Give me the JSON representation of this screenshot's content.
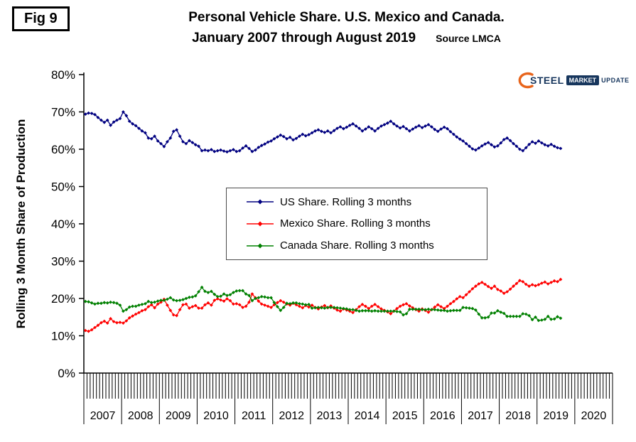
{
  "fig_label": "Fig 9",
  "title": {
    "line1": "Personal Vehicle Share. U.S. Mexico and Canada.",
    "line2": "January 2007 through August 2019",
    "source": "Source LMCA"
  },
  "y_axis_label": "Rolling 3 Month Share of Production",
  "logo": {
    "steel": "STEEL",
    "market": "MARKET",
    "update": "UPDATE"
  },
  "chart_data": {
    "type": "line",
    "title": "Personal Vehicle Share. U.S. Mexico and Canada. January 2007 through August 2019",
    "source": "Source LMCA",
    "ylabel": "Rolling 3 Month Share of Production",
    "ylim": [
      0,
      80
    ],
    "y_ticks": [
      0,
      10,
      20,
      30,
      40,
      50,
      60,
      70,
      80
    ],
    "y_tick_suffix": "%",
    "x_start": "2007-01",
    "x_end": "2019-08",
    "x_frequency": "monthly",
    "x_tick_labels": [
      "2007",
      "2008",
      "2009",
      "2010",
      "2011",
      "2012",
      "2013",
      "2014",
      "2015",
      "2016",
      "2017",
      "2018",
      "2019",
      "2020"
    ],
    "legend_position": "inside-center",
    "grid": false,
    "series": [
      {
        "id": "us",
        "name": "US Share. Rolling 3 months",
        "color": "#000080",
        "values": [
          69.4,
          69.7,
          69.6,
          69.3,
          68.5,
          67.8,
          67.2,
          67.8,
          66.4,
          67.3,
          67.8,
          68.2,
          70.0,
          69.0,
          67.5,
          66.8,
          66.3,
          65.6,
          64.9,
          64.4,
          63.0,
          62.8,
          63.5,
          62.2,
          61.5,
          60.7,
          62.0,
          63.0,
          64.8,
          65.2,
          63.5,
          62.0,
          61.5,
          62.3,
          61.8,
          61.2,
          60.8,
          59.6,
          59.8,
          59.6,
          59.9,
          59.4,
          59.6,
          59.8,
          59.5,
          59.3,
          59.6,
          59.9,
          59.4,
          59.6,
          60.3,
          60.9,
          60.2,
          59.4,
          59.8,
          60.5,
          61.0,
          61.4,
          61.9,
          62.2,
          62.8,
          63.3,
          63.8,
          63.4,
          62.8,
          63.2,
          62.5,
          62.9,
          63.5,
          64.0,
          63.6,
          63.9,
          64.4,
          64.9,
          65.2,
          64.8,
          64.5,
          64.9,
          64.4,
          65.0,
          65.6,
          66.0,
          65.5,
          65.9,
          66.4,
          66.8,
          66.2,
          65.6,
          64.9,
          65.4,
          66.0,
          65.5,
          64.9,
          65.6,
          66.2,
          66.6,
          67.0,
          67.5,
          66.8,
          66.2,
          65.7,
          66.1,
          65.5,
          64.9,
          65.4,
          65.9,
          66.3,
          65.8,
          66.2,
          66.6,
          66.0,
          65.3,
          64.8,
          65.4,
          65.9,
          65.5,
          64.7,
          64.0,
          63.3,
          62.7,
          62.2,
          61.5,
          60.8,
          60.1,
          59.8,
          60.3,
          60.9,
          61.4,
          61.8,
          61.2,
          60.6,
          60.9,
          61.7,
          62.6,
          63.0,
          62.3,
          61.5,
          60.8,
          60.0,
          59.6,
          60.4,
          61.3,
          62.0,
          61.6,
          62.2,
          61.7,
          61.2,
          60.9,
          61.3,
          60.8,
          60.4,
          60.2
        ]
      },
      {
        "id": "mexico",
        "name": "Mexico Share. Rolling 3 months",
        "color": "#FF0000",
        "values": [
          11.4,
          11.2,
          11.6,
          12.2,
          12.8,
          13.5,
          13.9,
          13.4,
          14.6,
          13.8,
          13.5,
          13.6,
          13.4,
          14.0,
          14.8,
          15.3,
          15.8,
          16.2,
          16.7,
          17.0,
          17.8,
          18.3,
          17.5,
          18.5,
          19.0,
          19.8,
          18.2,
          16.8,
          15.6,
          15.4,
          17.0,
          18.3,
          18.5,
          17.4,
          17.8,
          18.1,
          17.4,
          17.4,
          18.3,
          18.8,
          18.2,
          19.5,
          19.9,
          19.6,
          19.3,
          19.9,
          19.4,
          18.5,
          18.6,
          18.3,
          17.6,
          17.9,
          19.0,
          21.2,
          20.2,
          19.3,
          18.5,
          18.2,
          17.9,
          17.6,
          18.3,
          18.9,
          19.4,
          19.0,
          18.5,
          18.2,
          18.7,
          18.3,
          17.9,
          17.5,
          18.1,
          17.7,
          18.2,
          17.6,
          17.2,
          17.7,
          18.1,
          17.5,
          18.0,
          17.4,
          16.9,
          16.6,
          17.2,
          16.9,
          16.6,
          16.2,
          17.0,
          17.8,
          18.4,
          17.9,
          17.3,
          17.9,
          18.4,
          17.8,
          17.2,
          16.8,
          16.4,
          15.9,
          16.6,
          17.3,
          17.9,
          18.3,
          18.6,
          18.0,
          17.5,
          17.0,
          16.6,
          17.2,
          16.8,
          16.3,
          17.0,
          17.7,
          18.3,
          17.8,
          17.3,
          17.9,
          18.6,
          19.2,
          19.9,
          20.5,
          20.2,
          21.0,
          21.8,
          22.6,
          23.3,
          23.9,
          24.3,
          23.8,
          23.2,
          22.7,
          23.3,
          22.4,
          22.0,
          21.4,
          21.8,
          22.5,
          23.3,
          24.0,
          24.8,
          24.5,
          23.8,
          23.3,
          23.7,
          23.4,
          23.7,
          24.1,
          24.4,
          23.9,
          24.3,
          24.7,
          24.5,
          25.1
        ]
      },
      {
        "id": "canada",
        "name": "Canada Share. Rolling 3 months",
        "color": "#008000",
        "values": [
          19.2,
          19.1,
          18.8,
          18.5,
          18.7,
          18.7,
          18.9,
          18.8,
          19.0,
          18.9,
          18.7,
          18.2,
          16.6,
          17.0,
          17.7,
          17.9,
          17.9,
          18.2,
          18.4,
          18.6,
          19.2,
          18.9,
          19.0,
          19.3,
          19.5,
          19.5,
          19.8,
          20.2,
          19.6,
          19.4,
          19.5,
          19.7,
          20.0,
          20.3,
          20.4,
          20.7,
          21.8,
          23.0,
          21.9,
          21.6,
          21.9,
          21.1,
          20.5,
          20.6,
          21.2,
          20.8,
          21.0,
          21.6,
          22.0,
          22.1,
          22.1,
          21.2,
          20.8,
          19.4,
          20.0,
          20.2,
          20.5,
          20.4,
          20.2,
          20.2,
          18.9,
          17.8,
          16.8,
          17.6,
          18.7,
          18.6,
          18.8,
          18.8,
          18.6,
          18.5,
          18.3,
          18.4,
          17.4,
          17.5,
          17.6,
          17.5,
          17.4,
          17.6,
          17.6,
          17.6,
          17.5,
          17.4,
          17.3,
          17.2,
          17.0,
          17.0,
          16.8,
          16.6,
          16.7,
          16.7,
          16.7,
          16.6,
          16.7,
          16.6,
          16.6,
          16.6,
          16.6,
          16.6,
          16.6,
          16.5,
          16.4,
          15.6,
          15.9,
          17.1,
          17.1,
          17.1,
          17.1,
          17.0,
          17.0,
          17.1,
          17.0,
          17.0,
          16.9,
          16.8,
          16.8,
          16.6,
          16.7,
          16.8,
          16.8,
          16.8,
          17.6,
          17.5,
          17.4,
          17.3,
          16.9,
          15.8,
          14.8,
          14.8,
          15.0,
          16.1,
          16.1,
          16.7,
          16.3,
          16.0,
          15.2,
          15.2,
          15.2,
          15.2,
          15.2,
          15.9,
          15.8,
          15.4,
          14.3,
          15.0,
          14.1,
          14.2,
          14.4,
          15.2,
          14.4,
          14.5,
          15.1,
          14.7
        ]
      }
    ]
  }
}
